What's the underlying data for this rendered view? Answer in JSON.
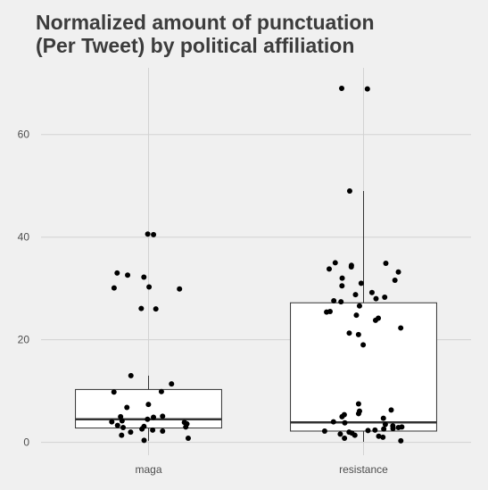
{
  "chart_data": {
    "type": "box",
    "title": "Normalized amount of punctuation (Per Tweet) by political affiliation",
    "title_lines": [
      "Normalized amount of punctuation",
      "(Per Tweet) by political affiliation"
    ],
    "xlabel": "",
    "ylabel": "",
    "categories": [
      "maga",
      "resistance"
    ],
    "yticks": [
      0,
      20,
      40,
      60
    ],
    "ylim": [
      -2.5,
      73
    ],
    "grid": true,
    "boxes": [
      {
        "category": "maga",
        "whisker_low": 0.3,
        "q1": 2.8,
        "median": 4.5,
        "q3": 10.3,
        "whisker_high": 13.0
      },
      {
        "category": "resistance",
        "whisker_low": 0.1,
        "q1": 2.2,
        "median": 3.9,
        "q3": 27.2,
        "whisker_high": 49.0
      }
    ],
    "points": [
      {
        "category": "maga",
        "values": [
          40.6,
          40.5,
          33.0,
          32.6,
          32.2,
          30.3,
          30.1,
          29.9,
          26.0,
          26.1,
          13.0,
          11.4,
          9.9,
          9.8,
          7.4,
          6.8,
          5.1,
          5.0,
          4.9,
          4.5,
          4.2,
          4.0,
          3.9,
          3.6,
          3.3,
          3.1,
          3.0,
          2.9,
          2.6,
          2.4,
          2.2,
          2.0,
          1.4,
          0.8,
          0.4
        ]
      },
      {
        "category": "resistance",
        "values": [
          69.0,
          68.9,
          49.0,
          35.0,
          34.9,
          34.5,
          34.2,
          33.8,
          33.2,
          32.0,
          31.6,
          31.0,
          30.5,
          29.2,
          28.8,
          28.3,
          28.0,
          27.6,
          27.4,
          26.6,
          25.5,
          25.4,
          24.8,
          24.2,
          23.8,
          22.3,
          21.3,
          21.0,
          19.0,
          7.5,
          6.3,
          6.1,
          5.6,
          5.4,
          5.0,
          4.7,
          4.0,
          3.8,
          3.5,
          3.2,
          3.0,
          2.9,
          2.7,
          2.6,
          2.4,
          2.3,
          2.2,
          2.0,
          1.8,
          1.6,
          1.4,
          1.2,
          1.0,
          0.8,
          0.3
        ]
      }
    ]
  }
}
